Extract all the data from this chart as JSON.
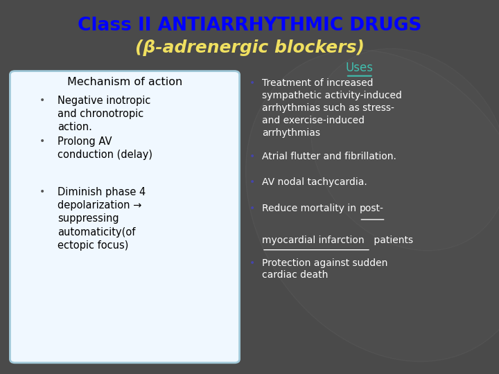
{
  "title_line1": "Class II ANTIARRHYTHMIC DRUGS",
  "title_line2": "(β-adrenergic blockers)",
  "title_color1": "#0000FF",
  "title_color2": "#F0E060",
  "bg_color": "#4a4a4a",
  "left_box_color": "#f0f8ff",
  "left_box_border": "#a0c8d8",
  "left_heading": "Mechanism of action",
  "left_bullets": [
    "Negative inotropic\nand chronotropic\naction.",
    "Prolong AV\nconduction (delay)",
    "Diminish phase 4\ndepolarization →\nsuppressing\nautomaticity(of\nectopic focus)"
  ],
  "right_heading": "Uses",
  "right_heading_color": "#40c0b0",
  "right_bullets": [
    "Treatment of increased\nsympathetic activity-induced\narrhythmias such as stress-\nand exercise-induced\narrhythmias",
    "Atrial flutter and fibrillation.",
    "AV nodal tachycardia.",
    "Reduce mortality in post-\nmyocardial infarction patients",
    "Protection against sudden\ncardiac death"
  ],
  "right_text_color": "#ffffff",
  "bullet_color_left": "#555555",
  "bullet_color_right": "#4444aa"
}
